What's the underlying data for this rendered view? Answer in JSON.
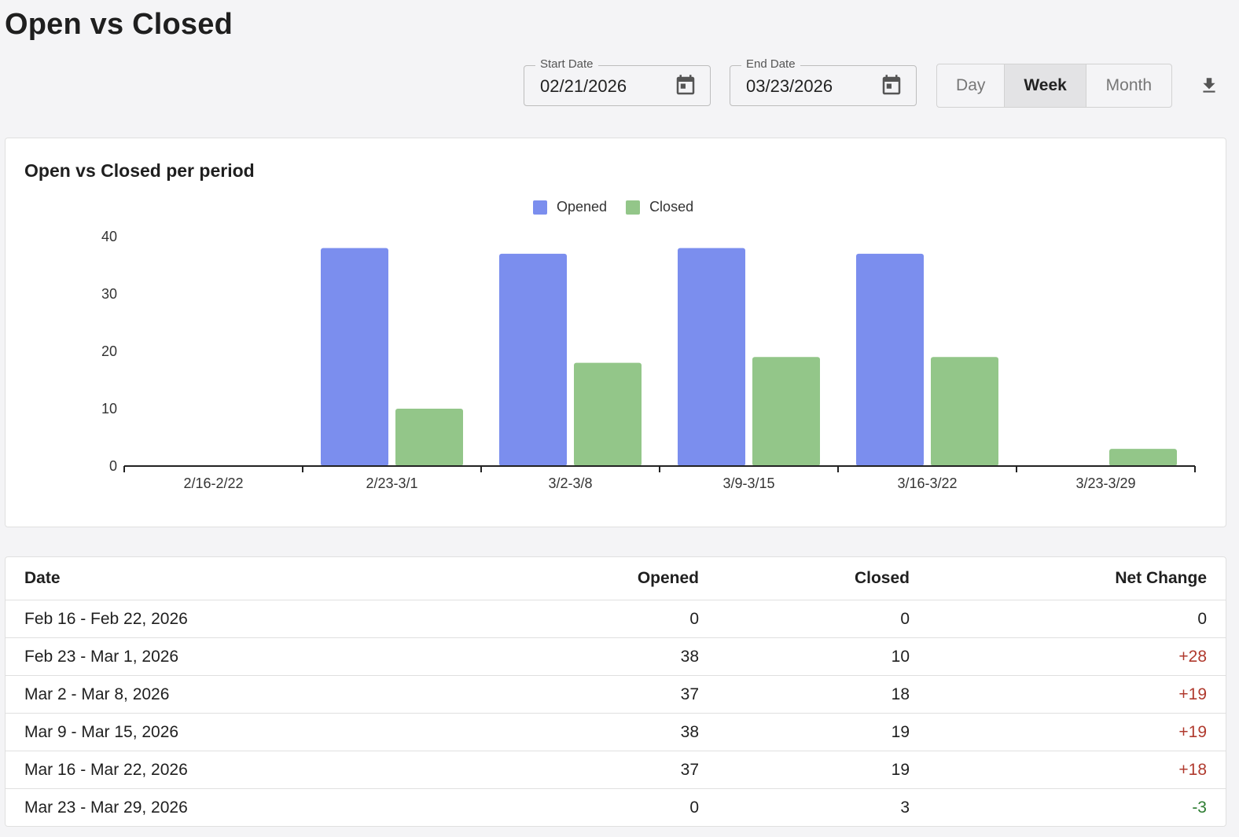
{
  "page": {
    "title": "Open vs Closed"
  },
  "filters": {
    "start_date": {
      "label": "Start Date",
      "value": "02/21/2026"
    },
    "end_date": {
      "label": "End Date",
      "value": "03/23/2026"
    },
    "granularity": {
      "options": [
        "Day",
        "Week",
        "Month"
      ],
      "selected": "Week"
    },
    "download_icon": "download-icon"
  },
  "colors": {
    "opened": "#7b8eee",
    "closed": "#93c689",
    "positive": "#b03a2e",
    "negative": "#2e7d32"
  },
  "chart_data": {
    "type": "bar",
    "title": "Open vs Closed per period",
    "categories": [
      "2/16-2/22",
      "2/23-3/1",
      "3/2-3/8",
      "3/9-3/15",
      "3/16-3/22",
      "3/23-3/29"
    ],
    "series": [
      {
        "name": "Opened",
        "values": [
          0,
          38,
          37,
          38,
          37,
          0
        ]
      },
      {
        "name": "Closed",
        "values": [
          0,
          10,
          18,
          19,
          19,
          3
        ]
      }
    ],
    "ylim": [
      0,
      40
    ],
    "yticks": [
      0,
      10,
      20,
      30,
      40
    ],
    "legend_position": "top-center",
    "grid": false
  },
  "table": {
    "headers": [
      "Date",
      "Opened",
      "Closed",
      "Net Change"
    ],
    "rows": [
      {
        "date": "Feb 16 - Feb 22, 2026",
        "opened": "0",
        "closed": "0",
        "net": "0",
        "sign": "zero"
      },
      {
        "date": "Feb 23 - Mar 1, 2026",
        "opened": "38",
        "closed": "10",
        "net": "+28",
        "sign": "pos"
      },
      {
        "date": "Mar 2 - Mar 8, 2026",
        "opened": "37",
        "closed": "18",
        "net": "+19",
        "sign": "pos"
      },
      {
        "date": "Mar 9 - Mar 15, 2026",
        "opened": "38",
        "closed": "19",
        "net": "+19",
        "sign": "pos"
      },
      {
        "date": "Mar 16 - Mar 22, 2026",
        "opened": "37",
        "closed": "19",
        "net": "+18",
        "sign": "pos"
      },
      {
        "date": "Mar 23 - Mar 29, 2026",
        "opened": "0",
        "closed": "3",
        "net": "-3",
        "sign": "neg"
      }
    ]
  }
}
